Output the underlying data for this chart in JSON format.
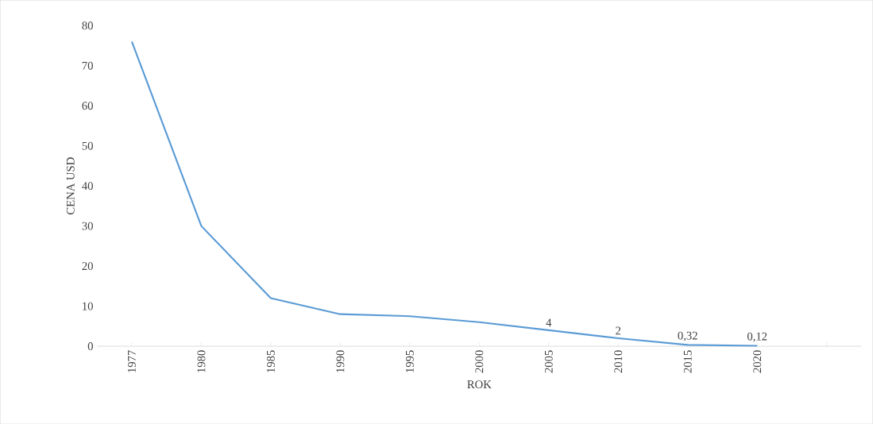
{
  "chart_data": {
    "type": "line",
    "xlabel": "ROK",
    "ylabel": "CENA USD",
    "categories": [
      "1977",
      "1980",
      "1985",
      "1990",
      "1995",
      "2000",
      "2005",
      "2010",
      "2015",
      "2020",
      null
    ],
    "series": [
      {
        "color": "#5b9bd5",
        "values": [
          76,
          30,
          12,
          8,
          7.5,
          6,
          4,
          2,
          0.32,
          0.12,
          null
        ],
        "value_labels": [
          null,
          null,
          null,
          null,
          null,
          null,
          "4",
          "2",
          "0,32",
          "0,12",
          null
        ]
      }
    ],
    "ylim": [
      0,
      80
    ],
    "yticks": [
      0,
      10,
      20,
      30,
      40,
      50,
      60,
      70,
      80
    ],
    "marker": "none",
    "line_style": "solid"
  }
}
